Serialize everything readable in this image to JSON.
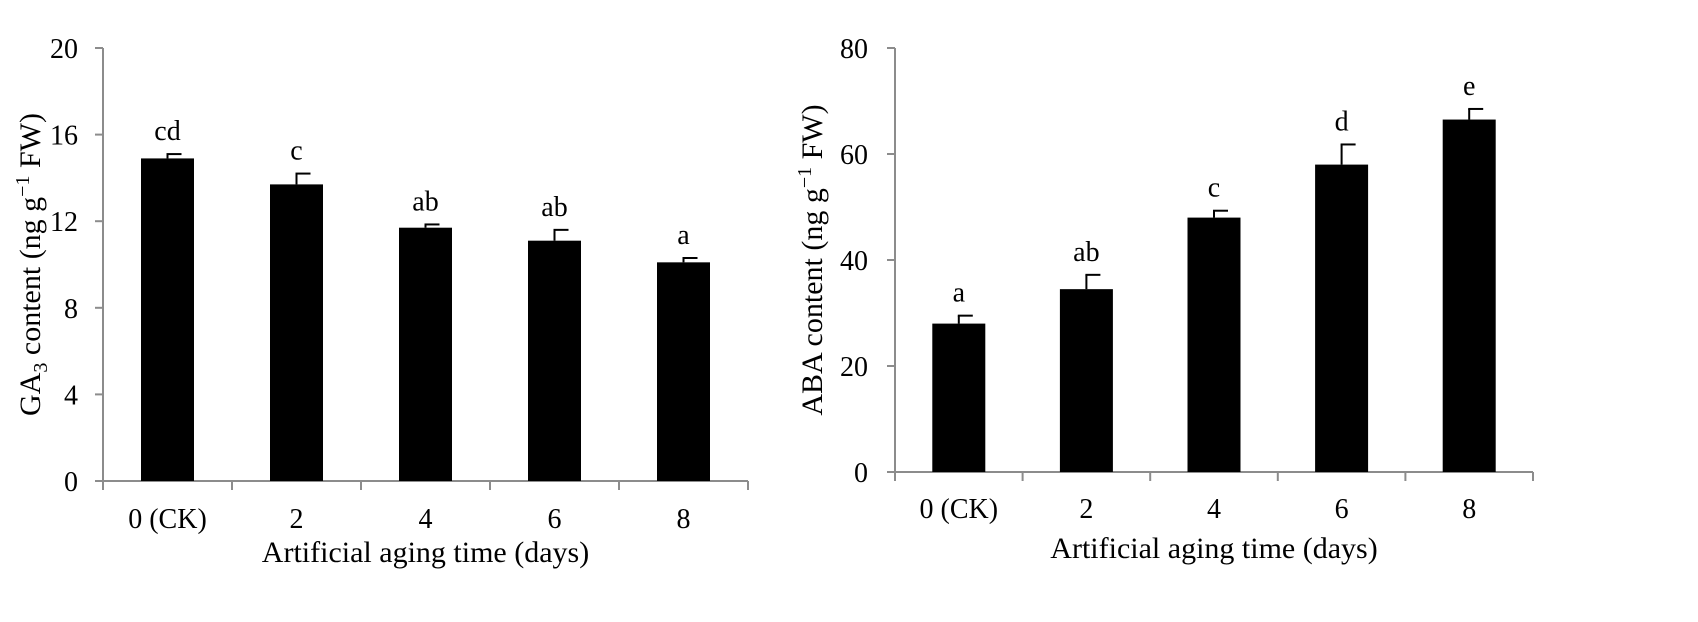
{
  "chart_data": [
    {
      "type": "bar",
      "categories": [
        "0 (CK)",
        "2",
        "4",
        "6",
        "8"
      ],
      "values": [
        14.9,
        13.7,
        11.7,
        11.1,
        10.1
      ],
      "errors": [
        0.2,
        0.5,
        0.15,
        0.5,
        0.2
      ],
      "significance_labels": [
        "cd",
        "c",
        "ab",
        "ab",
        "a"
      ],
      "title": "",
      "xlabel": "Artificial aging time (days)",
      "ylabel": "GA3 content (ng g−1 FW)",
      "ylabel_parts": {
        "pre": "GA",
        "sub": "3",
        "mid": " content (ng g",
        "sup": "−1",
        "post": " FW)"
      },
      "ylim": [
        0,
        20
      ],
      "yticks": [
        "0",
        "4",
        "8",
        "12",
        "16",
        "20"
      ],
      "grid": false,
      "bar_color": "#000000"
    },
    {
      "type": "bar",
      "categories": [
        "0 (CK)",
        "2",
        "4",
        "6",
        "8"
      ],
      "values": [
        28.0,
        34.5,
        48.0,
        58.0,
        66.5
      ],
      "errors": [
        1.5,
        2.7,
        1.3,
        3.8,
        2.0
      ],
      "significance_labels": [
        "a",
        "ab",
        "c",
        "d",
        "e"
      ],
      "title": "",
      "xlabel": "Artificial aging time (days)",
      "ylabel": "ABA content (ng g−1 FW)",
      "ylabel_parts": {
        "pre": "ABA content (ng g",
        "sub": "",
        "mid": "",
        "sup": "−1",
        "post": " FW)"
      },
      "ylim": [
        0,
        80
      ],
      "yticks": [
        "0",
        "20",
        "40",
        "60",
        "80"
      ],
      "grid": false,
      "bar_color": "#000000"
    }
  ]
}
